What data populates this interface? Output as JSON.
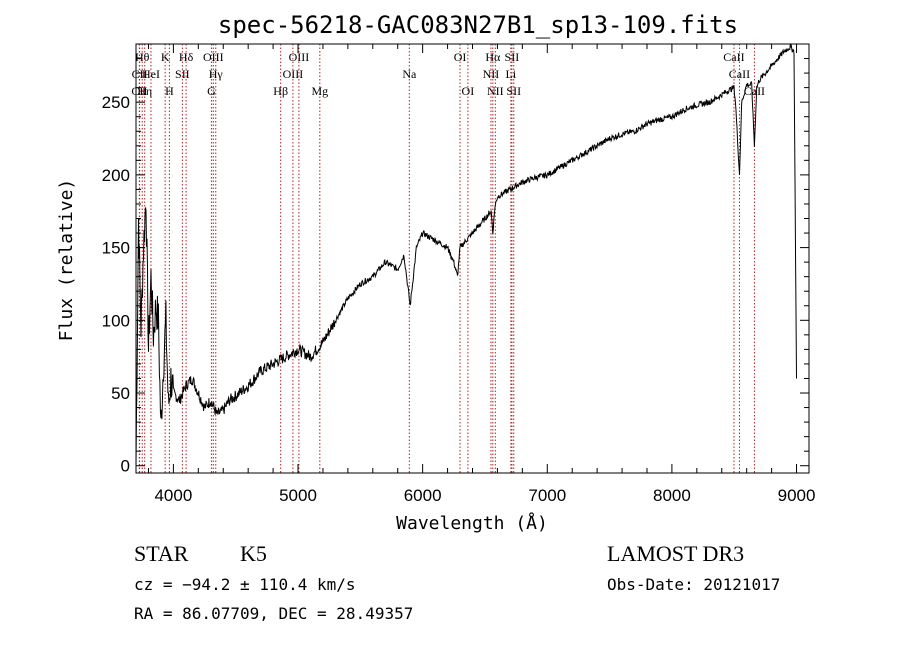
{
  "chart_data": {
    "type": "line",
    "title": "spec-56218-GAC083N27B1_sp13-109.fits",
    "xlabel": "Wavelength (Å)",
    "ylabel": "Flux (relative)",
    "xlim": [
      3700,
      9100
    ],
    "ylim": [
      -5,
      290
    ],
    "x_ticks": [
      4000,
      5000,
      6000,
      7000,
      8000,
      9000
    ],
    "x_tick_labels": [
      "4000",
      "5000",
      "6000",
      "7000",
      "8000",
      "9000"
    ],
    "y_ticks": [
      0,
      50,
      100,
      150,
      200,
      250
    ],
    "y_tick_labels": [
      "0",
      "50",
      "100",
      "150",
      "200",
      "250"
    ],
    "grid": false,
    "series": [
      {
        "name": "spectrum",
        "color": "#000000",
        "x": [
          3700,
          3720,
          3740,
          3760,
          3780,
          3800,
          3820,
          3840,
          3860,
          3880,
          3900,
          3920,
          3940,
          3960,
          3980,
          4000,
          4050,
          4100,
          4150,
          4200,
          4250,
          4300,
          4350,
          4400,
          4450,
          4500,
          4600,
          4700,
          4800,
          4900,
          5000,
          5100,
          5200,
          5300,
          5400,
          5500,
          5600,
          5700,
          5800,
          5850,
          5900,
          5950,
          6000,
          6100,
          6200,
          6250,
          6280,
          6300,
          6400,
          6500,
          6550,
          6563,
          6580,
          6600,
          6700,
          6800,
          6900,
          7000,
          7100,
          7200,
          7300,
          7400,
          7500,
          7600,
          7700,
          7800,
          7900,
          8000,
          8100,
          8200,
          8300,
          8400,
          8450,
          8498,
          8510,
          8542,
          8560,
          8600,
          8640,
          8662,
          8680,
          8700,
          8750,
          8800,
          8850,
          8900,
          8950,
          8980,
          9000
        ],
        "y": [
          0,
          170,
          95,
          150,
          185,
          80,
          130,
          90,
          110,
          100,
          25,
          70,
          100,
          40,
          60,
          50,
          45,
          55,
          60,
          50,
          40,
          45,
          35,
          38,
          45,
          48,
          55,
          65,
          70,
          75,
          80,
          75,
          85,
          100,
          115,
          125,
          130,
          140,
          135,
          145,
          110,
          150,
          160,
          155,
          150,
          140,
          130,
          150,
          160,
          170,
          175,
          160,
          178,
          185,
          190,
          195,
          198,
          200,
          205,
          210,
          215,
          220,
          225,
          228,
          230,
          235,
          238,
          240,
          245,
          248,
          250,
          255,
          258,
          260,
          250,
          200,
          250,
          262,
          262,
          220,
          260,
          265,
          270,
          275,
          280,
          285,
          288,
          285,
          60
        ]
      }
    ],
    "line_markers": [
      {
        "label": "CII",
        "wavelength": 3727,
        "row": 3
      },
      {
        "label": "CII",
        "wavelength": 3729,
        "row": 2
      },
      {
        "label": "Hθ",
        "wavelength": 3750,
        "row": 1
      },
      {
        "label": "Hη",
        "wavelength": 3770,
        "row": 3
      },
      {
        "label": "HeI",
        "wavelength": 3820,
        "row": 2
      },
      {
        "label": "K",
        "wavelength": 3934,
        "row": 1
      },
      {
        "label": "H",
        "wavelength": 3968,
        "row": 3
      },
      {
        "label": "SII",
        "wavelength": 4072,
        "row": 2
      },
      {
        "label": "Hδ",
        "wavelength": 4102,
        "row": 1
      },
      {
        "label": "OIII",
        "wavelength": 4320,
        "row": 1
      },
      {
        "label": "Hγ",
        "wavelength": 4340,
        "row": 2
      },
      {
        "label": "G",
        "wavelength": 4305,
        "row": 3
      },
      {
        "label": "Hβ",
        "wavelength": 4861,
        "row": 3
      },
      {
        "label": "OIII",
        "wavelength": 4959,
        "row": 2
      },
      {
        "label": "OIII",
        "wavelength": 5007,
        "row": 1
      },
      {
        "label": "Mg",
        "wavelength": 5175,
        "row": 3
      },
      {
        "label": "Na",
        "wavelength": 5893,
        "row": 2
      },
      {
        "label": "OI",
        "wavelength": 6300,
        "row": 1
      },
      {
        "label": "OI",
        "wavelength": 6363,
        "row": 3
      },
      {
        "label": "NII",
        "wavelength": 6548,
        "row": 2
      },
      {
        "label": "Hα",
        "wavelength": 6563,
        "row": 1
      },
      {
        "label": "NII",
        "wavelength": 6583,
        "row": 3
      },
      {
        "label": "SII",
        "wavelength": 6716,
        "row": 1
      },
      {
        "label": "Li",
        "wavelength": 6708,
        "row": 2
      },
      {
        "label": "SII",
        "wavelength": 6731,
        "row": 3
      },
      {
        "label": "CaII",
        "wavelength": 8498,
        "row": 1
      },
      {
        "label": "CaII",
        "wavelength": 8542,
        "row": 2
      },
      {
        "label": "CaII",
        "wavelength": 8662,
        "row": 3
      }
    ]
  },
  "info": {
    "class": "STAR",
    "subclass": "K5",
    "survey": "LAMOST DR3",
    "velocity": "cz = −94.2 ± 110.4 km/s",
    "obs_date": "Obs-Date: 20121017",
    "coords": "RA =  86.07709, DEC =  28.49357"
  },
  "colors": {
    "spectrum": "#000000",
    "marker": "#b22222",
    "axes": "#000000"
  }
}
